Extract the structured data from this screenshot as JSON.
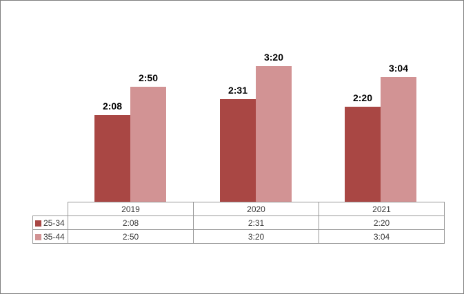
{
  "chart": {
    "background": "#ffffff",
    "frame_border_color": "#7f7f7f"
  },
  "chart_data": {
    "type": "bar",
    "title": "",
    "categories": [
      "2019",
      "2020",
      "2021"
    ],
    "series": [
      {
        "name": "25-34",
        "color": "#a94744",
        "values": [
          "2:08",
          "2:31",
          "2:20"
        ],
        "values_minutes": [
          128,
          151,
          140
        ]
      },
      {
        "name": "35-44",
        "color": "#d29394",
        "values": [
          "2:50",
          "3:20",
          "3:04"
        ],
        "values_minutes": [
          170,
          200,
          184
        ]
      }
    ],
    "value_format": "h:mm duration",
    "data_labels": true,
    "axes_visible": false,
    "gridlines": false,
    "legend_position": "data-table-left",
    "table": {
      "border_color": "#969696",
      "text_color": "#3a3a3a"
    }
  }
}
